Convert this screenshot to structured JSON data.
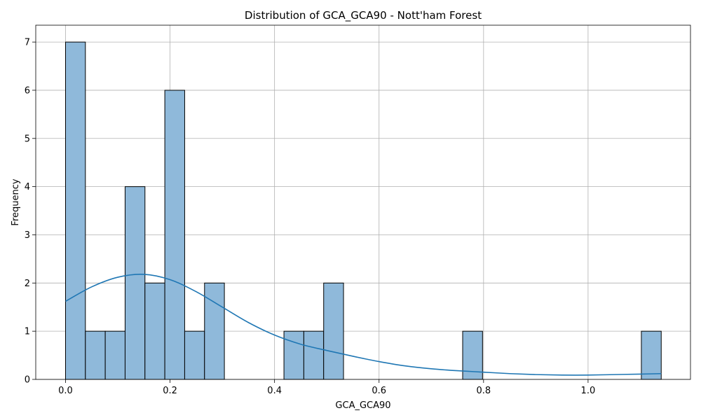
{
  "chart_data": {
    "type": "bar",
    "subtype": "histogram-with-kde",
    "title": "Distribution of GCA_GCA90 - Nott'ham Forest",
    "xlabel": "GCA_GCA90",
    "ylabel": "Frequency",
    "xlim": [
      -0.057,
      1.196
    ],
    "ylim": [
      0,
      7.35
    ],
    "x_ticks": [
      0.0,
      0.2,
      0.4,
      0.6,
      0.8,
      1.0
    ],
    "x_tick_labels": [
      "0.0",
      "0.2",
      "0.4",
      "0.6",
      "0.8",
      "1.0"
    ],
    "y_ticks": [
      0,
      1,
      2,
      3,
      4,
      5,
      6,
      7
    ],
    "y_tick_labels": [
      "0",
      "1",
      "2",
      "3",
      "4",
      "5",
      "6",
      "7"
    ],
    "grid": true,
    "bar_color": "#8fb9da",
    "bar_edge_color": "#000000",
    "kde_color": "#1f77b4",
    "bins": [
      {
        "x0": 0.0,
        "x1": 0.038,
        "count": 7
      },
      {
        "x0": 0.038,
        "x1": 0.076,
        "count": 1
      },
      {
        "x0": 0.076,
        "x1": 0.114,
        "count": 1
      },
      {
        "x0": 0.114,
        "x1": 0.152,
        "count": 4
      },
      {
        "x0": 0.152,
        "x1": 0.19,
        "count": 2
      },
      {
        "x0": 0.19,
        "x1": 0.228,
        "count": 6
      },
      {
        "x0": 0.228,
        "x1": 0.266,
        "count": 1
      },
      {
        "x0": 0.266,
        "x1": 0.304,
        "count": 2
      },
      {
        "x0": 0.418,
        "x1": 0.456,
        "count": 1
      },
      {
        "x0": 0.456,
        "x1": 0.494,
        "count": 1
      },
      {
        "x0": 0.494,
        "x1": 0.532,
        "count": 2
      },
      {
        "x0": 0.76,
        "x1": 0.798,
        "count": 1
      },
      {
        "x0": 1.102,
        "x1": 1.14,
        "count": 1
      }
    ],
    "kde": {
      "x": [
        0.0,
        0.05,
        0.1,
        0.15,
        0.2,
        0.25,
        0.3,
        0.35,
        0.4,
        0.45,
        0.5,
        0.55,
        0.6,
        0.65,
        0.7,
        0.75,
        0.8,
        0.85,
        0.9,
        0.95,
        1.0,
        1.05,
        1.1,
        1.14
      ],
      "y": [
        1.62,
        1.92,
        2.12,
        2.18,
        2.07,
        1.82,
        1.5,
        1.18,
        0.92,
        0.73,
        0.6,
        0.48,
        0.37,
        0.28,
        0.22,
        0.18,
        0.15,
        0.12,
        0.1,
        0.09,
        0.09,
        0.1,
        0.11,
        0.12
      ]
    }
  }
}
